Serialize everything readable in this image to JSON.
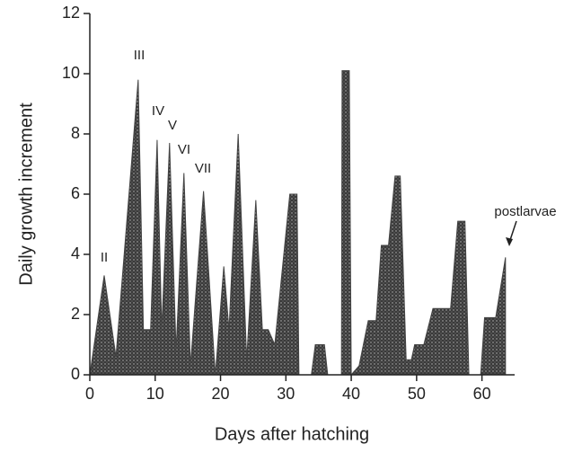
{
  "chart_data": {
    "type": "area",
    "xlabel": "Days after hatching",
    "ylabel": "Daily growth increment",
    "x": [
      0,
      2.2,
      4,
      7.4,
      8.2,
      9.3,
      10.3,
      11,
      12.2,
      13.2,
      14.4,
      15.4,
      17.4,
      19.2,
      20.5,
      21.3,
      22.7,
      24,
      25.4,
      26.4,
      27.3,
      28.3,
      30.6,
      31.7,
      32,
      33.9,
      34.5,
      35.9,
      36.4,
      38.5,
      38.6,
      39.7,
      40,
      41.2,
      42.6,
      43.8,
      44.6,
      45.7,
      46.7,
      47.5,
      48.4,
      49.2,
      49.7,
      51.1,
      52.5,
      55.2,
      56.3,
      57.4,
      58,
      59.8,
      60.4,
      62.1,
      63.6,
      63.6
    ],
    "values": [
      0,
      3.3,
      0.6,
      9.8,
      1.5,
      1.5,
      7.8,
      1.5,
      7.7,
      0.8,
      6.7,
      0.3,
      6.1,
      0,
      3.6,
      1.5,
      8,
      0.5,
      5.8,
      1.5,
      1.5,
      1,
      6,
      6,
      0,
      0,
      1,
      1,
      0,
      0,
      10.1,
      10.1,
      0,
      0.3,
      1.8,
      1.8,
      4.3,
      4.3,
      6.6,
      6.6,
      0.5,
      0.5,
      1,
      1,
      2.2,
      2.2,
      5.1,
      5.1,
      0,
      0,
      1.9,
      1.9,
      3.9,
      0
    ],
    "color": "#444444",
    "xlim": [
      0,
      65
    ],
    "xticks": [
      0,
      10,
      20,
      30,
      40,
      50,
      60
    ],
    "ylim": [
      0,
      12
    ],
    "yticks": [
      0,
      2,
      4,
      6,
      8,
      10,
      12
    ],
    "annotations": [
      "II",
      "III",
      "IV",
      "V",
      "VI",
      "VII",
      "postlarvae"
    ]
  }
}
